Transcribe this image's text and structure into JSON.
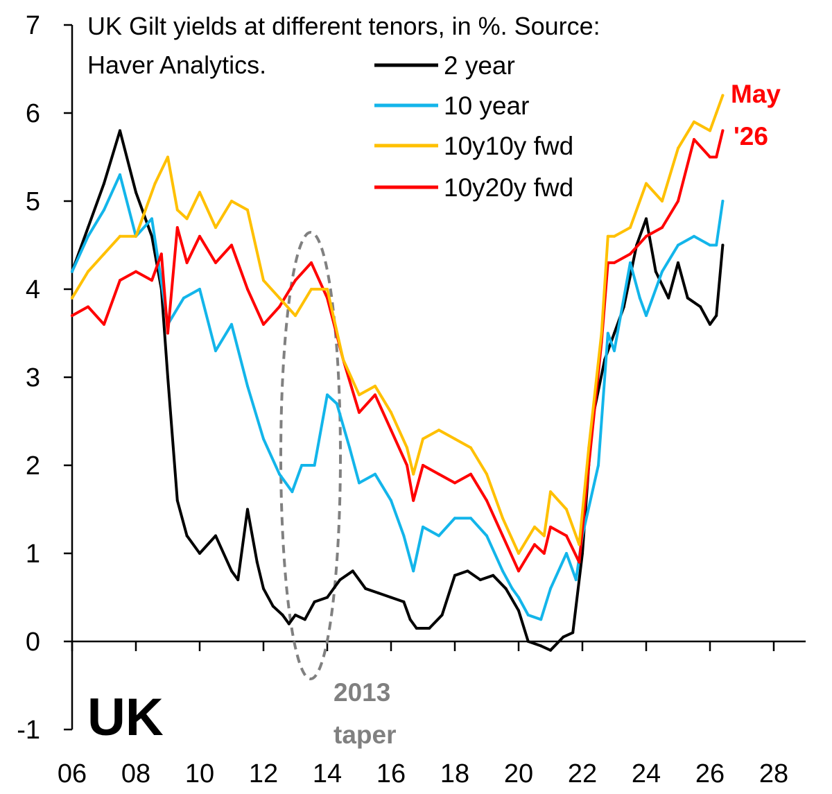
{
  "chart_data": {
    "type": "line",
    "title_lines": [
      "UK Gilt yields at different tenors, in %. Source:",
      "Haver Analytics."
    ],
    "xlabel": "",
    "ylabel": "",
    "xlim": [
      2006,
      2028
    ],
    "ylim": [
      -1,
      7
    ],
    "x_ticks": [
      2006,
      2008,
      2010,
      2012,
      2014,
      2016,
      2018,
      2020,
      2022,
      2024,
      2026,
      2028
    ],
    "x_tick_labels": [
      "06",
      "08",
      "10",
      "12",
      "14",
      "16",
      "18",
      "20",
      "22",
      "24",
      "26",
      "28"
    ],
    "y_ticks": [
      -1,
      0,
      1,
      2,
      3,
      4,
      5,
      6,
      7
    ],
    "y_tick_labels": [
      "-1",
      "0",
      "1",
      "2",
      "3",
      "4",
      "5",
      "6",
      "7"
    ],
    "grid": false,
    "legend_position": "top-center",
    "series": [
      {
        "name": "2 year",
        "color": "#000000",
        "x": [
          2006.0,
          2006.5,
          2007.0,
          2007.5,
          2008.0,
          2008.5,
          2008.8,
          2009.0,
          2009.3,
          2009.6,
          2010.0,
          2010.5,
          2011.0,
          2011.2,
          2011.5,
          2011.8,
          2012.0,
          2012.3,
          2012.6,
          2012.8,
          2013.0,
          2013.3,
          2013.6,
          2014.0,
          2014.4,
          2014.8,
          2015.2,
          2015.6,
          2016.0,
          2016.4,
          2016.6,
          2016.8,
          2017.2,
          2017.6,
          2018.0,
          2018.4,
          2018.8,
          2019.2,
          2019.6,
          2020.0,
          2020.3,
          2020.7,
          2021.0,
          2021.4,
          2021.7,
          2022.0,
          2022.3,
          2022.7,
          2023.0,
          2023.3,
          2023.7,
          2024.0,
          2024.3,
          2024.7,
          2025.0,
          2025.3,
          2025.7,
          2026.0,
          2026.2,
          2026.4
        ],
        "values": [
          4.2,
          4.7,
          5.2,
          5.8,
          5.1,
          4.6,
          4.0,
          3.0,
          1.6,
          1.2,
          1.0,
          1.2,
          0.8,
          0.7,
          1.5,
          0.9,
          0.6,
          0.4,
          0.3,
          0.2,
          0.3,
          0.25,
          0.45,
          0.5,
          0.7,
          0.8,
          0.6,
          0.55,
          0.5,
          0.45,
          0.25,
          0.15,
          0.15,
          0.3,
          0.75,
          0.8,
          0.7,
          0.75,
          0.6,
          0.35,
          0.0,
          -0.05,
          -0.1,
          0.05,
          0.1,
          1.0,
          2.5,
          3.2,
          3.5,
          3.8,
          4.5,
          4.8,
          4.2,
          3.9,
          4.3,
          3.9,
          3.8,
          3.6,
          3.7,
          4.5
        ]
      },
      {
        "name": "10 year",
        "color": "#13b5ea",
        "x": [
          2006.0,
          2006.5,
          2007.0,
          2007.5,
          2008.0,
          2008.5,
          2009.0,
          2009.5,
          2010.0,
          2010.5,
          2011.0,
          2011.5,
          2012.0,
          2012.5,
          2012.9,
          2013.2,
          2013.6,
          2014.0,
          2014.3,
          2014.7,
          2015.0,
          2015.5,
          2016.0,
          2016.4,
          2016.7,
          2017.0,
          2017.5,
          2018.0,
          2018.5,
          2019.0,
          2019.5,
          2019.8,
          2020.0,
          2020.3,
          2020.7,
          2021.0,
          2021.5,
          2021.8,
          2022.0,
          2022.5,
          2022.8,
          2023.0,
          2023.5,
          2023.8,
          2024.0,
          2024.5,
          2025.0,
          2025.5,
          2026.0,
          2026.2,
          2026.4
        ],
        "values": [
          4.2,
          4.6,
          4.9,
          5.3,
          4.6,
          4.8,
          3.6,
          3.9,
          4.0,
          3.3,
          3.6,
          2.9,
          2.3,
          1.9,
          1.7,
          2.0,
          2.0,
          2.8,
          2.7,
          2.2,
          1.8,
          1.9,
          1.6,
          1.2,
          0.8,
          1.3,
          1.2,
          1.4,
          1.4,
          1.2,
          0.8,
          0.6,
          0.5,
          0.3,
          0.25,
          0.6,
          1.0,
          0.7,
          1.2,
          2.0,
          3.5,
          3.3,
          4.3,
          3.9,
          3.7,
          4.2,
          4.5,
          4.6,
          4.5,
          4.5,
          5.0
        ]
      },
      {
        "name": "10y10y fwd",
        "color": "#ffc000",
        "x": [
          2006.0,
          2006.5,
          2007.0,
          2007.5,
          2008.0,
          2008.3,
          2008.6,
          2009.0,
          2009.3,
          2009.6,
          2010.0,
          2010.5,
          2011.0,
          2011.5,
          2012.0,
          2012.5,
          2013.0,
          2013.5,
          2014.0,
          2014.5,
          2015.0,
          2015.5,
          2016.0,
          2016.5,
          2016.7,
          2017.0,
          2017.5,
          2018.0,
          2018.5,
          2019.0,
          2019.5,
          2020.0,
          2020.5,
          2020.8,
          2021.0,
          2021.5,
          2021.9,
          2022.2,
          2022.6,
          2022.8,
          2023.0,
          2023.5,
          2024.0,
          2024.5,
          2025.0,
          2025.5,
          2026.0,
          2026.2,
          2026.4
        ],
        "values": [
          3.9,
          4.2,
          4.4,
          4.6,
          4.6,
          4.9,
          5.2,
          5.5,
          4.9,
          4.8,
          5.1,
          4.7,
          5.0,
          4.9,
          4.1,
          3.9,
          3.7,
          4.0,
          4.0,
          3.2,
          2.8,
          2.9,
          2.6,
          2.2,
          1.9,
          2.3,
          2.4,
          2.3,
          2.2,
          1.9,
          1.4,
          1.0,
          1.3,
          1.2,
          1.7,
          1.5,
          1.1,
          2.2,
          3.5,
          4.6,
          4.6,
          4.7,
          5.2,
          5.0,
          5.6,
          5.9,
          5.8,
          6.0,
          6.2
        ]
      },
      {
        "name": "10y20y fwd",
        "color": "#ff0000",
        "x": [
          2006.0,
          2006.5,
          2007.0,
          2007.5,
          2008.0,
          2008.5,
          2008.8,
          2009.0,
          2009.3,
          2009.6,
          2010.0,
          2010.5,
          2011.0,
          2011.5,
          2012.0,
          2012.5,
          2013.0,
          2013.5,
          2014.0,
          2014.5,
          2015.0,
          2015.5,
          2016.0,
          2016.5,
          2016.7,
          2017.0,
          2017.5,
          2018.0,
          2018.5,
          2019.0,
          2019.5,
          2020.0,
          2020.5,
          2020.8,
          2021.0,
          2021.5,
          2021.9,
          2022.2,
          2022.6,
          2022.8,
          2023.0,
          2023.5,
          2024.0,
          2024.5,
          2025.0,
          2025.5,
          2026.0,
          2026.2,
          2026.4
        ],
        "values": [
          3.7,
          3.8,
          3.6,
          4.1,
          4.2,
          4.1,
          4.4,
          3.5,
          4.7,
          4.3,
          4.6,
          4.3,
          4.5,
          4.0,
          3.6,
          3.8,
          4.1,
          4.3,
          3.9,
          3.2,
          2.6,
          2.8,
          2.4,
          2.0,
          1.6,
          2.0,
          1.9,
          1.8,
          1.9,
          1.6,
          1.2,
          0.8,
          1.1,
          1.0,
          1.3,
          1.2,
          0.9,
          2.0,
          3.4,
          4.3,
          4.3,
          4.4,
          4.6,
          4.7,
          5.0,
          5.7,
          5.5,
          5.5,
          5.8
        ]
      }
    ],
    "annotations": {
      "country": "UK",
      "taper_line1": "2013",
      "taper_line2": "taper",
      "latest_line1": "May",
      "latest_line2": "'26"
    },
    "annotation_colors": {
      "taper": "#808080",
      "latest": "#ff0000"
    }
  }
}
